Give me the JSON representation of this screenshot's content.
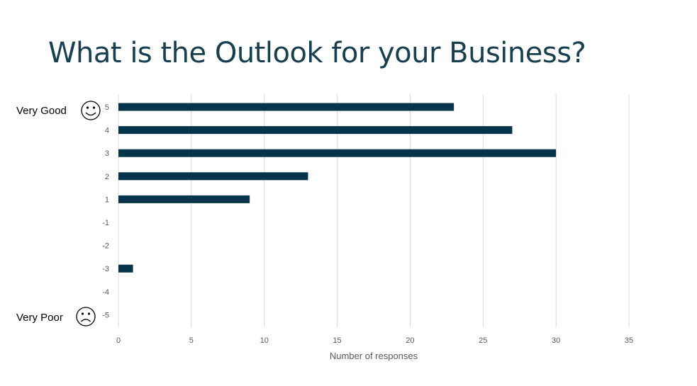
{
  "chart_data": {
    "type": "bar",
    "orientation": "horizontal",
    "title": "What is the Outlook for your Business?",
    "xlabel": "Number of responses",
    "ylabel": "",
    "categories": [
      "5",
      "4",
      "3",
      "2",
      "1",
      "-1",
      "-2",
      "-3",
      "-4",
      "-5"
    ],
    "values": [
      23,
      27,
      30,
      13,
      9,
      0,
      0,
      1,
      0,
      0
    ],
    "xlim": [
      0,
      35
    ],
    "xticks": [
      "0",
      "5",
      "10",
      "15",
      "20",
      "25",
      "30",
      "35"
    ],
    "grid": true,
    "bar_color": "#06344a",
    "annotations": {
      "top": "Very Good",
      "bottom": "Very Poor",
      "top_icon": "smiley-face-icon",
      "bottom_icon": "sad-face-icon"
    }
  }
}
